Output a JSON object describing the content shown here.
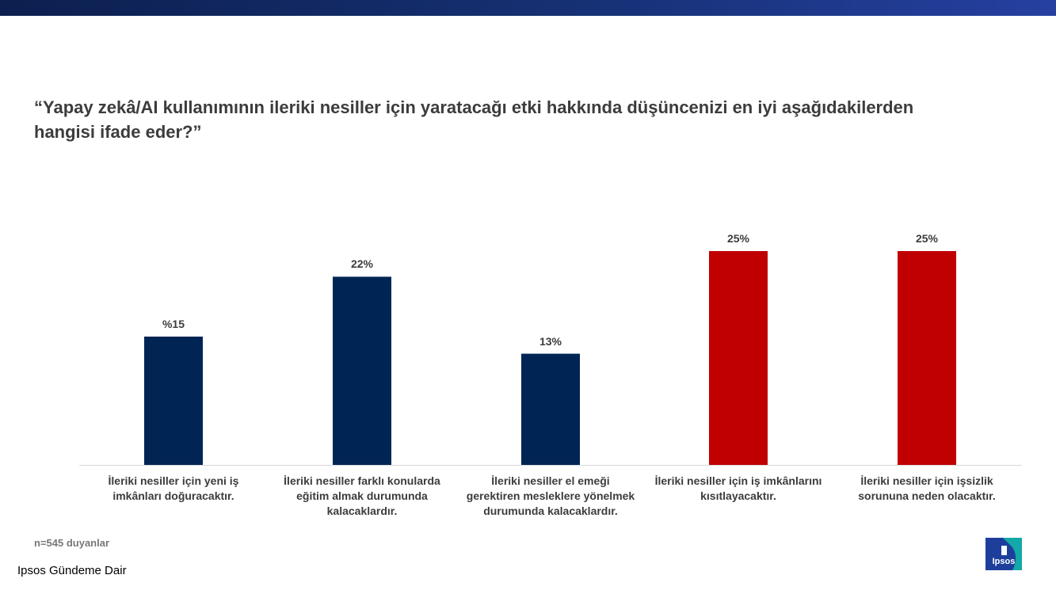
{
  "header": {
    "question": "“Yapay zekâ/AI kullanımının ileriki nesiller için yaratacağı etki hakkında düşüncenizi en iyi aşağıdakilerden hangisi ifade eder?”"
  },
  "chart_data": {
    "type": "bar",
    "categories": [
      "İleriki nesiller için yeni iş imkânları doğuracaktır.",
      "İleriki nesiller farklı konularda eğitim almak durumunda kalacaklardır.",
      "İleriki nesiller el emeği gerektiren mesleklere yönelmek durumunda kalacaklardır.",
      "İleriki nesiller için iş imkânlarını kısıtlayacaktır.",
      "İleriki nesiller için işsizlik sorununa neden olacaktır."
    ],
    "values": [
      15,
      22,
      13,
      25,
      25
    ],
    "value_labels": [
      "%15",
      "22%",
      "13%",
      "25%",
      "25%"
    ],
    "bar_colors": [
      "#002554",
      "#002554",
      "#002554",
      "#c00000",
      "#c00000"
    ],
    "ylim": [
      0,
      25
    ],
    "grid": false,
    "legend": "none"
  },
  "footer": {
    "sample_note": "n=545 duyanlar",
    "brand": "Ipsos Gündeme Dair",
    "logo_text": "Ipsos"
  },
  "colors": {
    "navy": "#002554",
    "red": "#c00000",
    "logo_blue": "#1d3f9b",
    "logo_teal": "#14a9a9"
  }
}
